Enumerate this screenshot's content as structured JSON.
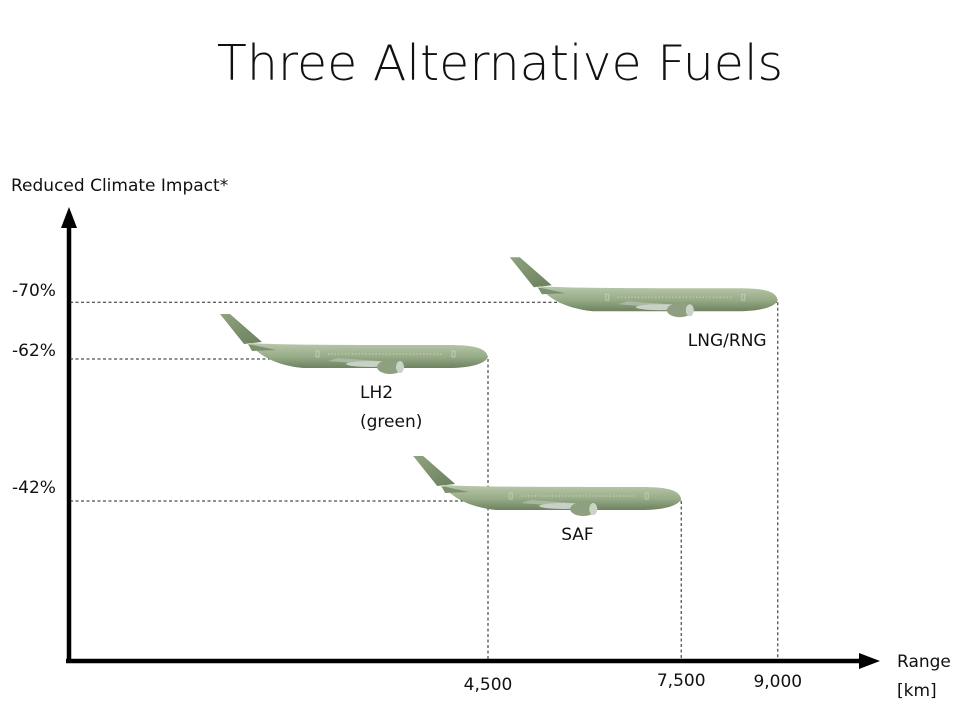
{
  "chart_data": {
    "type": "scatter",
    "title": "Three Alternative Fuels",
    "ylabel": "Reduced Climate Impact*",
    "xlabel_lines": [
      "Range",
      "[km]"
    ],
    "x_ticks": [
      "4,500",
      "7,500",
      "9,000"
    ],
    "y_ticks": [
      "-70%",
      "-62%",
      "-42%"
    ],
    "series": [
      {
        "label_lines": [
          "LH2",
          "(green)"
        ],
        "range_km": 4500,
        "climate_impact_pct": -62
      },
      {
        "label_lines": [
          "SAF"
        ],
        "range_km": 7500,
        "climate_impact_pct": -42
      },
      {
        "label_lines": [
          "LNG/RNG"
        ],
        "range_km": 9000,
        "climate_impact_pct": -70
      }
    ],
    "marker_icon": "airplane-icon",
    "grid": false
  },
  "colors": {
    "airframe": "#9aae8a",
    "airframe_dark": "#6f8461",
    "guide_line": "#222222",
    "axis": "#000000"
  }
}
